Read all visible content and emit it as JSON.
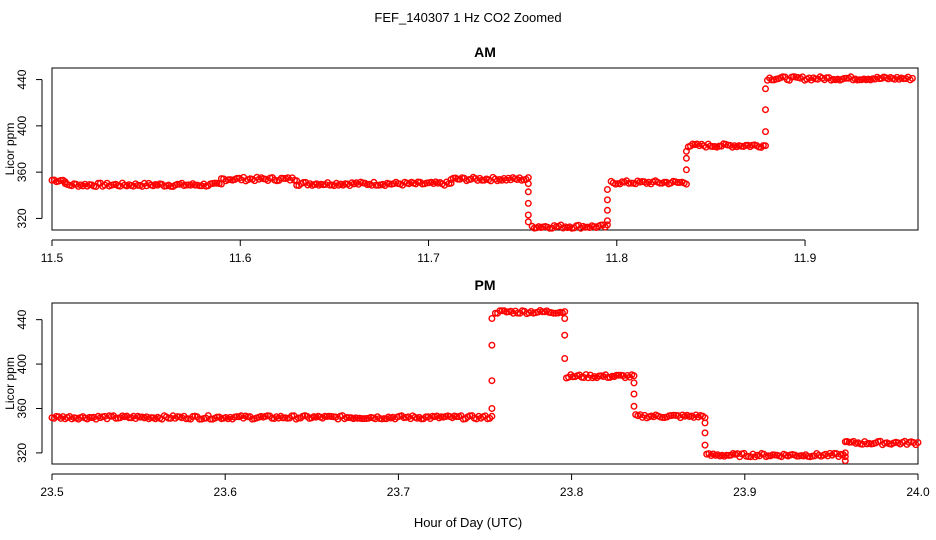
{
  "figure": {
    "title": "FEF_140307  1 Hz CO2 Zoomed",
    "xlabel": "Hour of Day (UTC)"
  },
  "colors": {
    "points": "#ff0000",
    "axes": "#000000",
    "background": "#ffffff"
  },
  "chart_data": [
    {
      "type": "scatter",
      "title": "AM",
      "ylabel": "Licor ppm",
      "xlim": [
        11.5,
        11.96
      ],
      "ylim": [
        310,
        450
      ],
      "xticks": [
        11.5,
        11.6,
        11.7,
        11.8,
        11.9
      ],
      "xtick_labels": [
        "11.5",
        "11.6",
        "11.7",
        "11.8",
        "11.9"
      ],
      "yticks": [
        320,
        360,
        400,
        440
      ],
      "ytick_labels": [
        "320",
        "360",
        "400",
        "440"
      ],
      "grid": false,
      "legend": "none",
      "segments": [
        {
          "x0": 11.5,
          "x1": 11.507,
          "y": 353
        },
        {
          "x0": 11.507,
          "x1": 11.59,
          "y": 349
        },
        {
          "x0": 11.59,
          "x1": 11.63,
          "y": 354
        },
        {
          "x0": 11.63,
          "x1": 11.712,
          "y": 350
        },
        {
          "x0": 11.712,
          "x1": 11.753,
          "y": 354
        },
        {
          "x0": 11.755,
          "x1": 11.795,
          "y": 313
        },
        {
          "x0": 11.797,
          "x1": 11.837,
          "y": 351
        },
        {
          "x0": 11.838,
          "x1": 11.879,
          "y": 383
        },
        {
          "x0": 11.88,
          "x1": 11.957,
          "y": 441
        }
      ],
      "transitions": [
        {
          "x": 11.753,
          "y": [
            350,
            343,
            333,
            323,
            317
          ]
        },
        {
          "x": 11.795,
          "y": [
            318,
            327,
            336,
            345
          ]
        },
        {
          "x": 11.837,
          "y": [
            362,
            372,
            378
          ]
        },
        {
          "x": 11.879,
          "y": [
            395,
            414,
            432
          ]
        }
      ]
    },
    {
      "type": "scatter",
      "title": "PM",
      "ylabel": "Licor ppm",
      "xlim": [
        23.5,
        24.0
      ],
      "ylim": [
        310,
        455
      ],
      "xticks": [
        23.5,
        23.6,
        23.7,
        23.8,
        23.9,
        24.0
      ],
      "xtick_labels": [
        "23.5",
        "23.6",
        "23.7",
        "23.8",
        "23.9",
        "24.0"
      ],
      "yticks": [
        320,
        360,
        400,
        440
      ],
      "ytick_labels": [
        "320",
        "360",
        "400",
        "440"
      ],
      "grid": false,
      "legend": "none",
      "segments": [
        {
          "x0": 23.5,
          "x1": 23.754,
          "y": 352
        },
        {
          "x0": 23.756,
          "x1": 23.796,
          "y": 447
        },
        {
          "x0": 23.797,
          "x1": 23.836,
          "y": 389
        },
        {
          "x0": 23.837,
          "x1": 23.877,
          "y": 353
        },
        {
          "x0": 23.878,
          "x1": 23.958,
          "y": 318
        },
        {
          "x0": 23.959,
          "x1": 24.0,
          "y": 329
        }
      ],
      "transitions": [
        {
          "x": 23.754,
          "y": [
            360,
            385,
            417,
            441
          ]
        },
        {
          "x": 23.796,
          "y": [
            441,
            426,
            405
          ]
        },
        {
          "x": 23.836,
          "y": [
            383,
            373,
            362
          ]
        },
        {
          "x": 23.877,
          "y": [
            347,
            338,
            327
          ]
        },
        {
          "x": 23.958,
          "y": [
            313,
            320,
            330
          ]
        }
      ]
    }
  ]
}
